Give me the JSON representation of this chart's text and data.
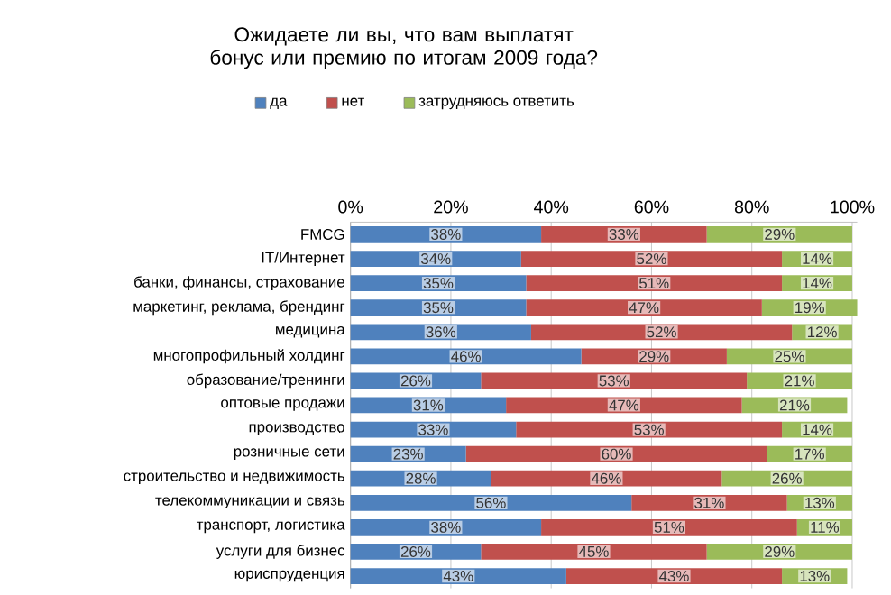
{
  "chart_data": {
    "type": "bar",
    "orientation": "horizontal",
    "stacked": true,
    "title": "Ожидаете ли вы, что вам выплатят бонус или премию по итогам 2009 года?",
    "categories": [
      "FMCG",
      "IT/Интернет",
      "банки, финансы, страхование",
      "маркетинг, реклама, брендинг",
      "медицина",
      "многопрофильный холдинг",
      "образование/тренинги",
      "оптовые продажи",
      "производство",
      "розничные сети",
      "строительство и недвижимость",
      "телекоммуникации и связь",
      "транспорт, логистика",
      "услуги для бизнес",
      "юриспруденция"
    ],
    "series": [
      {
        "name": "да",
        "color": "#4f81bd",
        "values": [
          38,
          34,
          35,
          35,
          36,
          46,
          26,
          31,
          33,
          23,
          28,
          56,
          38,
          26,
          43
        ],
        "value_labels": [
          "38%",
          "34%",
          "35%",
          "35%",
          "36%",
          "46%",
          "26%",
          "31%",
          "33%",
          "23%",
          "28%",
          "56%",
          "38%",
          "26%",
          "43%"
        ]
      },
      {
        "name": "нет",
        "color": "#c0504d",
        "values": [
          33,
          52,
          51,
          47,
          52,
          29,
          53,
          47,
          53,
          60,
          46,
          31,
          51,
          45,
          43
        ],
        "value_labels": [
          "33%",
          "52%",
          "51%",
          "47%",
          "52%",
          "29%",
          "53%",
          "47%",
          "53%",
          "60%",
          "46%",
          "31%",
          "51%",
          "45%",
          "43%"
        ]
      },
      {
        "name": "затрудняюсь ответить",
        "color": "#9bbb59",
        "values": [
          29,
          14,
          14,
          19,
          12,
          25,
          21,
          21,
          14,
          17,
          26,
          13,
          11,
          29,
          13
        ],
        "value_labels": [
          "29%",
          "14%",
          "14%",
          "19%",
          "12%",
          "25%",
          "21%",
          "21%",
          "14%",
          "17%",
          "26%",
          "13%",
          "11%",
          "29%",
          "13%"
        ]
      }
    ],
    "xlim": [
      0,
      101
    ],
    "xticks": [
      {
        "value": 0,
        "label": "0%"
      },
      {
        "value": 20,
        "label": "20%"
      },
      {
        "value": 40,
        "label": "40%"
      },
      {
        "value": 60,
        "label": "60%"
      },
      {
        "value": 80,
        "label": "80%"
      },
      {
        "value": 100,
        "label": "100%"
      }
    ],
    "grid": "x",
    "legend": "top"
  }
}
